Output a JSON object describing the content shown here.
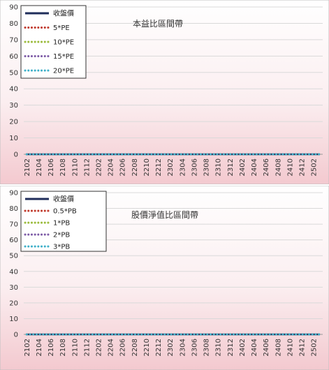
{
  "chart_data": [
    {
      "type": "line",
      "title": "本益比區間帶",
      "ylim": [
        0,
        90
      ],
      "yticks": [
        0,
        10,
        20,
        30,
        40,
        50,
        60,
        70,
        80,
        90
      ],
      "x_tick_labels": [
        "2102",
        "2104",
        "2106",
        "2108",
        "2110",
        "2112",
        "2202",
        "2204",
        "2206",
        "2208",
        "2210",
        "2212",
        "2302",
        "2304",
        "2306",
        "2308",
        "2310",
        "2312",
        "2402",
        "2404",
        "2406",
        "2408",
        "2410",
        "2412",
        "2502"
      ],
      "x_count": 50,
      "grid": "horizontal",
      "legend": "top-left",
      "series": [
        {
          "name": "收盤價",
          "style": "solid",
          "color": "#1f2d5a",
          "values": [
            0,
            0,
            0,
            0,
            0,
            0,
            0,
            0,
            0,
            0,
            0,
            0,
            0,
            0,
            0,
            0,
            0,
            0,
            0,
            0,
            0,
            0,
            0,
            0,
            0,
            0,
            0,
            0,
            0,
            0,
            0,
            0,
            0,
            0,
            0,
            0,
            0,
            0,
            0,
            0,
            0,
            0,
            0,
            0,
            0,
            0,
            0,
            0,
            0,
            0
          ]
        },
        {
          "name": "5*PE",
          "style": "dotted",
          "color": "#c0392b",
          "values": [
            0,
            0,
            0,
            0,
            0,
            0,
            0,
            0,
            0,
            0,
            0,
            0,
            0,
            0,
            0,
            0,
            0,
            0,
            0,
            0,
            0,
            0,
            0,
            0,
            0,
            0,
            0,
            0,
            0,
            0,
            0,
            0,
            0,
            0,
            0,
            0,
            0,
            0,
            0,
            0,
            0,
            0,
            0,
            0,
            0,
            0,
            0,
            0,
            0,
            0
          ]
        },
        {
          "name": "10*PE",
          "style": "dotted",
          "color": "#9bbb3c",
          "values": [
            0,
            0,
            0,
            0,
            0,
            0,
            0,
            0,
            0,
            0,
            0,
            0,
            0,
            0,
            0,
            0,
            0,
            0,
            0,
            0,
            0,
            0,
            0,
            0,
            0,
            0,
            0,
            0,
            0,
            0,
            0,
            0,
            0,
            0,
            0,
            0,
            0,
            0,
            0,
            0,
            0,
            0,
            0,
            0,
            0,
            0,
            0,
            0,
            0,
            0
          ]
        },
        {
          "name": "15*PE",
          "style": "dotted",
          "color": "#7d5ba6",
          "values": [
            0,
            0,
            0,
            0,
            0,
            0,
            0,
            0,
            0,
            0,
            0,
            0,
            0,
            0,
            0,
            0,
            0,
            0,
            0,
            0,
            0,
            0,
            0,
            0,
            0,
            0,
            0,
            0,
            0,
            0,
            0,
            0,
            0,
            0,
            0,
            0,
            0,
            0,
            0,
            0,
            0,
            0,
            0,
            0,
            0,
            0,
            0,
            0,
            0,
            0
          ]
        },
        {
          "name": "20*PE",
          "style": "dotted",
          "color": "#3fb0c9",
          "values": [
            0,
            0,
            0,
            0,
            0,
            0,
            0,
            0,
            0,
            0,
            0,
            0,
            0,
            0,
            0,
            0,
            0,
            0,
            0,
            0,
            0,
            0,
            0,
            0,
            0,
            0,
            0,
            0,
            0,
            0,
            0,
            0,
            0,
            0,
            0,
            0,
            0,
            0,
            0,
            0,
            0,
            0,
            0,
            0,
            0,
            0,
            0,
            0,
            0,
            0
          ]
        }
      ]
    },
    {
      "type": "line",
      "title": "股價淨值比區間帶",
      "ylim": [
        0,
        90
      ],
      "yticks": [
        0,
        10,
        20,
        30,
        40,
        50,
        60,
        70,
        80,
        90
      ],
      "x_tick_labels": [
        "2102",
        "2104",
        "2106",
        "2108",
        "2110",
        "2112",
        "2202",
        "2204",
        "2206",
        "2208",
        "2210",
        "2212",
        "2302",
        "2304",
        "2306",
        "2308",
        "2310",
        "2312",
        "2402",
        "2404",
        "2406",
        "2408",
        "2410",
        "2412",
        "2502"
      ],
      "x_count": 50,
      "grid": "horizontal",
      "legend": "top-left",
      "series": [
        {
          "name": "收盤價",
          "style": "solid",
          "color": "#1f2d5a",
          "values": [
            0,
            0,
            0,
            0,
            0,
            0,
            0,
            0,
            0,
            0,
            0,
            0,
            0,
            0,
            0,
            0,
            0,
            0,
            0,
            0,
            0,
            0,
            0,
            0,
            0,
            0,
            0,
            0,
            0,
            0,
            0,
            0,
            0,
            0,
            0,
            0,
            0,
            0,
            0,
            0,
            0,
            0,
            0,
            0,
            0,
            0,
            0,
            0,
            0,
            0
          ]
        },
        {
          "name": "0.5*PB",
          "style": "dotted",
          "color": "#c0392b",
          "values": [
            0,
            0,
            0,
            0,
            0,
            0,
            0,
            0,
            0,
            0,
            0,
            0,
            0,
            0,
            0,
            0,
            0,
            0,
            0,
            0,
            0,
            0,
            0,
            0,
            0,
            0,
            0,
            0,
            0,
            0,
            0,
            0,
            0,
            0,
            0,
            0,
            0,
            0,
            0,
            0,
            0,
            0,
            0,
            0,
            0,
            0,
            0,
            0,
            0,
            0
          ]
        },
        {
          "name": "1*PB",
          "style": "dotted",
          "color": "#9bbb3c",
          "values": [
            0,
            0,
            0,
            0,
            0,
            0,
            0,
            0,
            0,
            0,
            0,
            0,
            0,
            0,
            0,
            0,
            0,
            0,
            0,
            0,
            0,
            0,
            0,
            0,
            0,
            0,
            0,
            0,
            0,
            0,
            0,
            0,
            0,
            0,
            0,
            0,
            0,
            0,
            0,
            0,
            0,
            0,
            0,
            0,
            0,
            0,
            0,
            0,
            0,
            0
          ]
        },
        {
          "name": "2*PB",
          "style": "dotted",
          "color": "#7d5ba6",
          "values": [
            0,
            0,
            0,
            0,
            0,
            0,
            0,
            0,
            0,
            0,
            0,
            0,
            0,
            0,
            0,
            0,
            0,
            0,
            0,
            0,
            0,
            0,
            0,
            0,
            0,
            0,
            0,
            0,
            0,
            0,
            0,
            0,
            0,
            0,
            0,
            0,
            0,
            0,
            0,
            0,
            0,
            0,
            0,
            0,
            0,
            0,
            0,
            0,
            0,
            0
          ]
        },
        {
          "name": "3*PB",
          "style": "dotted",
          "color": "#3fb0c9",
          "values": [
            0,
            0,
            0,
            0,
            0,
            0,
            0,
            0,
            0,
            0,
            0,
            0,
            0,
            0,
            0,
            0,
            0,
            0,
            0,
            0,
            0,
            0,
            0,
            0,
            0,
            0,
            0,
            0,
            0,
            0,
            0,
            0,
            0,
            0,
            0,
            0,
            0,
            0,
            0,
            0,
            0,
            0,
            0,
            0,
            0,
            0,
            0,
            0,
            0,
            0
          ]
        }
      ]
    }
  ],
  "colors": {
    "background_top": "#ffffff",
    "background_bottom": "#f3c9cf",
    "gridline": "#d9d9d9"
  }
}
